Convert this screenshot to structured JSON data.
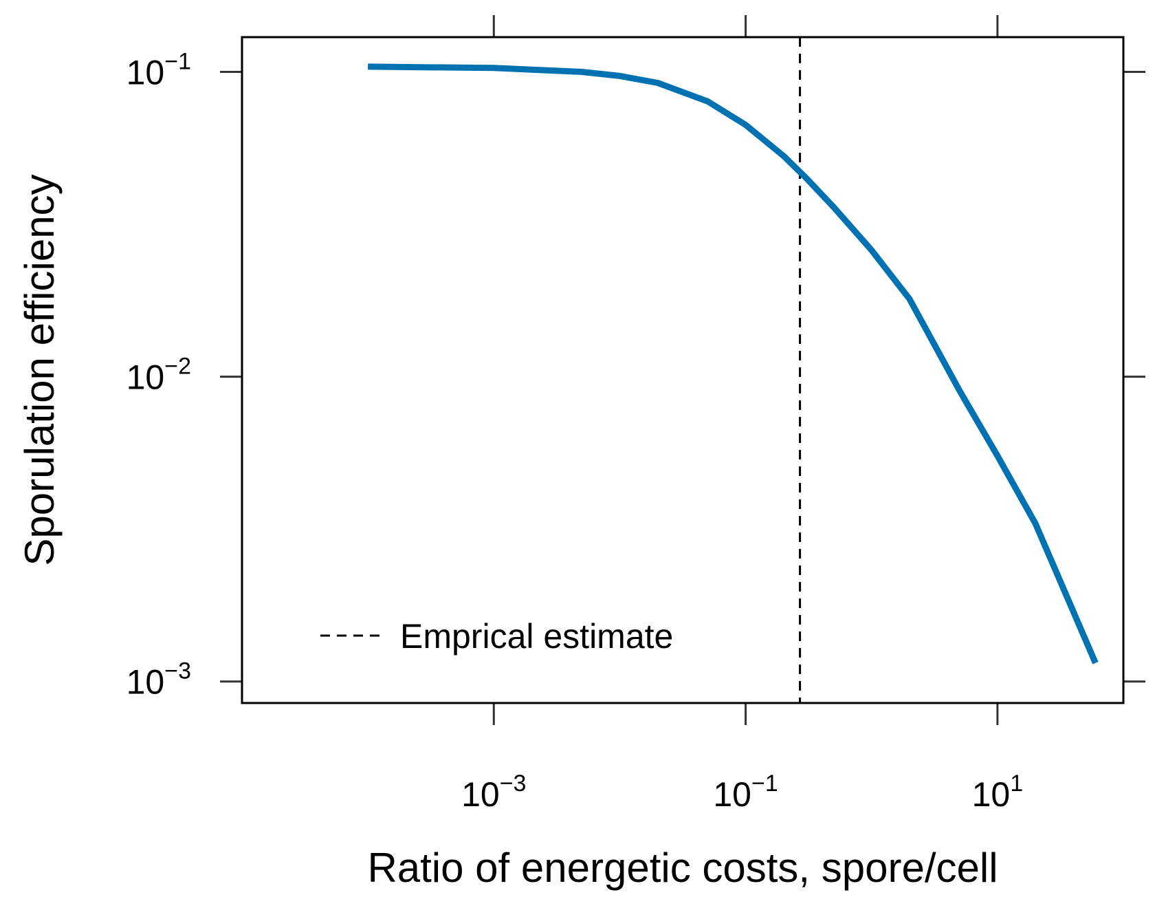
{
  "chart_data": {
    "type": "line",
    "xlabel": "Ratio of energetic costs, spore/cell",
    "ylabel": "Sporulation efficiency",
    "xscale": "log",
    "yscale": "log",
    "xlim": [
      1e-05,
      100
    ],
    "ylim": [
      0.00085,
      0.13
    ],
    "grid": false,
    "legend_position": "bottom-left",
    "x_ticks": [
      {
        "value": 0.001,
        "base": "10",
        "exp": "−3"
      },
      {
        "value": 0.1,
        "base": "10",
        "exp": "−1"
      },
      {
        "value": 10,
        "base": "10",
        "exp": "1"
      }
    ],
    "y_ticks": [
      {
        "value": 0.1,
        "base": "10",
        "exp": "−1"
      },
      {
        "value": 0.01,
        "base": "10",
        "exp": "−2"
      },
      {
        "value": 0.001,
        "base": "10",
        "exp": "−3"
      }
    ],
    "series": [
      {
        "color": "#0072B2",
        "x": [
          0.0001,
          0.001,
          0.005,
          0.01,
          0.02,
          0.05,
          0.1,
          0.2,
          0.3,
          0.5,
          1,
          2,
          5,
          10,
          20,
          60
        ],
        "y": [
          0.104,
          0.103,
          0.1,
          0.097,
          0.092,
          0.08,
          0.067,
          0.053,
          0.045,
          0.036,
          0.026,
          0.018,
          0.009,
          0.0055,
          0.0033,
          0.00115
        ]
      }
    ],
    "reference_line": {
      "type": "vertical",
      "x": 0.27,
      "style": "dashed",
      "color": "#000000",
      "label": "Emprical estimate"
    }
  }
}
